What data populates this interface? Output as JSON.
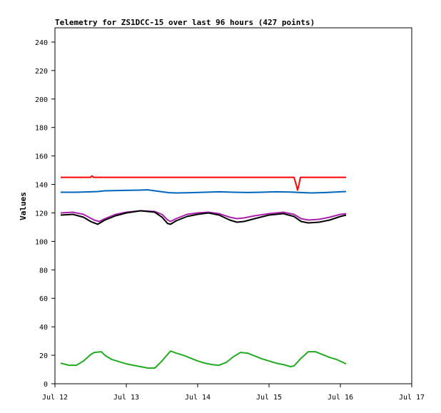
{
  "chart_data": {
    "type": "line",
    "title": "Telemetry for ZS1DCC-15 over last 96 hours (427 points)",
    "xlabel": "",
    "ylabel": "Values",
    "xlim": [
      "Jul 12",
      "Jul 17"
    ],
    "ylim": [
      0,
      250
    ],
    "x_ticks": [
      "Jul 12",
      "Jul 13",
      "Jul 14",
      "Jul 15",
      "Jul 16",
      "Jul 17"
    ],
    "y_ticks": [
      0,
      20,
      40,
      60,
      80,
      100,
      120,
      140,
      160,
      180,
      200,
      220,
      240
    ],
    "grid": false,
    "legend": "none",
    "x_unit": "days since Jul 12 00:00",
    "series": [
      {
        "color": "#ff0000",
        "points": [
          [
            0.08,
            145
          ],
          [
            0.5,
            145
          ],
          [
            0.52,
            146
          ],
          [
            0.54,
            145
          ],
          [
            1.0,
            145
          ],
          [
            2.0,
            145
          ],
          [
            3.0,
            145
          ],
          [
            3.35,
            145
          ],
          [
            3.38,
            140
          ],
          [
            3.4,
            136
          ],
          [
            3.42,
            140
          ],
          [
            3.44,
            145
          ],
          [
            3.6,
            145
          ],
          [
            4.08,
            145
          ]
        ]
      },
      {
        "color": "#0066bb",
        "points": [
          [
            0.08,
            134.5
          ],
          [
            0.3,
            134.5
          ],
          [
            0.5,
            134.8
          ],
          [
            0.6,
            135
          ],
          [
            0.7,
            135.5
          ],
          [
            1.0,
            135.8
          ],
          [
            1.2,
            136
          ],
          [
            1.3,
            136.2
          ],
          [
            1.4,
            135.5
          ],
          [
            1.5,
            134.8
          ],
          [
            1.6,
            134.2
          ],
          [
            1.7,
            134
          ],
          [
            1.9,
            134.2
          ],
          [
            2.1,
            134.5
          ],
          [
            2.3,
            134.8
          ],
          [
            2.5,
            134.5
          ],
          [
            2.7,
            134.3
          ],
          [
            2.9,
            134.5
          ],
          [
            3.1,
            134.8
          ],
          [
            3.3,
            134.6
          ],
          [
            3.5,
            134.2
          ],
          [
            3.6,
            134
          ],
          [
            3.8,
            134.3
          ],
          [
            4.0,
            134.8
          ],
          [
            4.08,
            135
          ]
        ]
      },
      {
        "color": "#aa22aa",
        "points": [
          [
            0.08,
            120
          ],
          [
            0.25,
            120.5
          ],
          [
            0.4,
            119
          ],
          [
            0.55,
            115
          ],
          [
            0.62,
            114
          ],
          [
            0.7,
            116
          ],
          [
            0.85,
            119
          ],
          [
            1.0,
            120.5
          ],
          [
            1.2,
            121.5
          ],
          [
            1.4,
            121
          ],
          [
            1.5,
            119
          ],
          [
            1.58,
            115
          ],
          [
            1.62,
            114
          ],
          [
            1.7,
            116
          ],
          [
            1.85,
            119
          ],
          [
            2.0,
            120
          ],
          [
            2.15,
            120.5
          ],
          [
            2.3,
            119.5
          ],
          [
            2.45,
            117
          ],
          [
            2.55,
            116
          ],
          [
            2.65,
            116.5
          ],
          [
            2.8,
            118
          ],
          [
            3.0,
            119.5
          ],
          [
            3.2,
            120.5
          ],
          [
            3.35,
            119
          ],
          [
            3.45,
            116
          ],
          [
            3.55,
            115
          ],
          [
            3.7,
            115.5
          ],
          [
            3.85,
            117
          ],
          [
            4.0,
            119
          ],
          [
            4.08,
            119.5
          ]
        ]
      },
      {
        "color": "#000000",
        "points": [
          [
            0.08,
            118.5
          ],
          [
            0.25,
            119
          ],
          [
            0.4,
            117
          ],
          [
            0.5,
            114
          ],
          [
            0.6,
            112
          ],
          [
            0.7,
            115
          ],
          [
            0.85,
            118
          ],
          [
            1.0,
            120
          ],
          [
            1.2,
            121.5
          ],
          [
            1.4,
            120.5
          ],
          [
            1.5,
            117
          ],
          [
            1.58,
            112.5
          ],
          [
            1.62,
            112
          ],
          [
            1.7,
            114.5
          ],
          [
            1.85,
            117.5
          ],
          [
            2.0,
            119
          ],
          [
            2.15,
            120
          ],
          [
            2.3,
            118.5
          ],
          [
            2.45,
            115
          ],
          [
            2.55,
            113.5
          ],
          [
            2.65,
            114
          ],
          [
            2.8,
            116
          ],
          [
            3.0,
            118.5
          ],
          [
            3.2,
            119.5
          ],
          [
            3.35,
            117.5
          ],
          [
            3.45,
            114
          ],
          [
            3.55,
            113
          ],
          [
            3.7,
            113.5
          ],
          [
            3.85,
            115
          ],
          [
            4.0,
            117.5
          ],
          [
            4.08,
            118.5
          ]
        ]
      },
      {
        "color": "#22aa22",
        "points": [
          [
            0.08,
            14.5
          ],
          [
            0.2,
            13
          ],
          [
            0.3,
            13
          ],
          [
            0.4,
            16
          ],
          [
            0.5,
            20.5
          ],
          [
            0.55,
            22
          ],
          [
            0.65,
            22.5
          ],
          [
            0.7,
            20
          ],
          [
            0.8,
            17
          ],
          [
            0.9,
            15.5
          ],
          [
            1.0,
            14
          ],
          [
            1.1,
            13
          ],
          [
            1.2,
            12
          ],
          [
            1.3,
            11
          ],
          [
            1.4,
            11
          ],
          [
            1.5,
            16
          ],
          [
            1.55,
            19
          ],
          [
            1.62,
            23
          ],
          [
            1.7,
            21.5
          ],
          [
            1.8,
            20
          ],
          [
            1.9,
            18
          ],
          [
            2.0,
            16
          ],
          [
            2.1,
            14.5
          ],
          [
            2.2,
            13.5
          ],
          [
            2.3,
            13
          ],
          [
            2.4,
            15
          ],
          [
            2.5,
            19
          ],
          [
            2.6,
            22
          ],
          [
            2.7,
            21.5
          ],
          [
            2.8,
            19.5
          ],
          [
            2.9,
            17.5
          ],
          [
            3.0,
            16
          ],
          [
            3.1,
            14.5
          ],
          [
            3.2,
            13.5
          ],
          [
            3.3,
            12
          ],
          [
            3.35,
            12.5
          ],
          [
            3.45,
            18
          ],
          [
            3.55,
            22.5
          ],
          [
            3.65,
            22.5
          ],
          [
            3.75,
            20.5
          ],
          [
            3.85,
            18.5
          ],
          [
            3.95,
            17
          ],
          [
            4.08,
            14
          ]
        ]
      }
    ]
  }
}
